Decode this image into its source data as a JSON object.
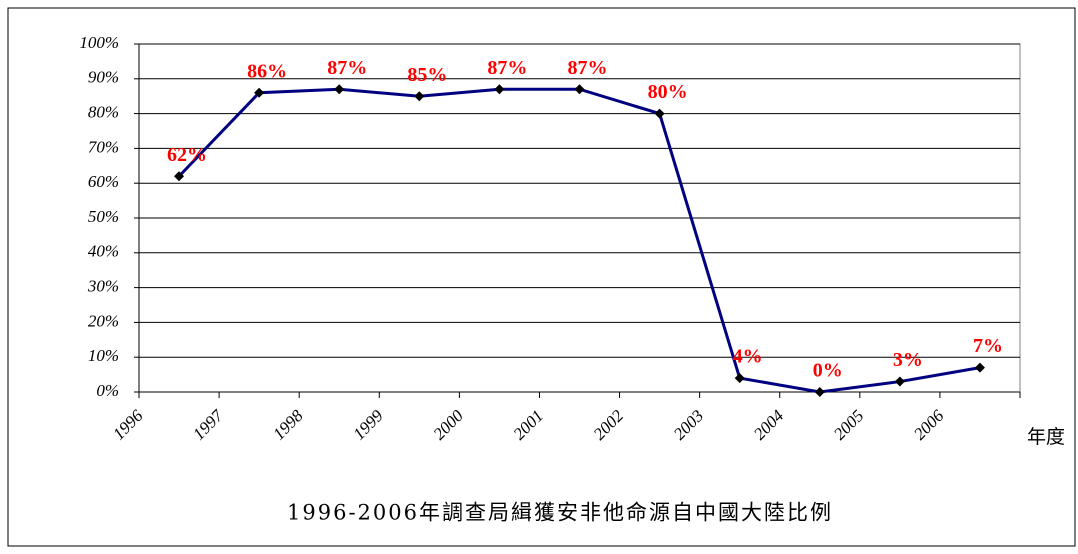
{
  "chart_data": {
    "type": "line",
    "title": "1996-2006年調查局緝獲安非他命源自中國大陸比例",
    "x_label": "年度",
    "categories": [
      "1996",
      "1997",
      "1998",
      "1999",
      "2000",
      "2001",
      "2002",
      "2003",
      "2004",
      "2005",
      "2006"
    ],
    "series": [
      {
        "name": "比例",
        "color": "#000080",
        "values": [
          62,
          86,
          87,
          85,
          87,
          87,
          80,
          4,
          0,
          3,
          7
        ],
        "value_labels": [
          "62%",
          "86%",
          "87%",
          "85%",
          "87%",
          "87%",
          "80%",
          "4%",
          "0%",
          "3%",
          "7%"
        ]
      }
    ],
    "ylim": [
      0,
      100
    ],
    "yticks": [
      {
        "value": 0,
        "label": "0%"
      },
      {
        "value": 10,
        "label": "10%"
      },
      {
        "value": 20,
        "label": "20%"
      },
      {
        "value": 30,
        "label": "30%"
      },
      {
        "value": 40,
        "label": "40%"
      },
      {
        "value": 50,
        "label": "50%"
      },
      {
        "value": 60,
        "label": "60%"
      },
      {
        "value": 70,
        "label": "70%"
      },
      {
        "value": 80,
        "label": "80%"
      },
      {
        "value": 90,
        "label": "90%"
      },
      {
        "value": 100,
        "label": "100%"
      }
    ],
    "grid": true
  }
}
